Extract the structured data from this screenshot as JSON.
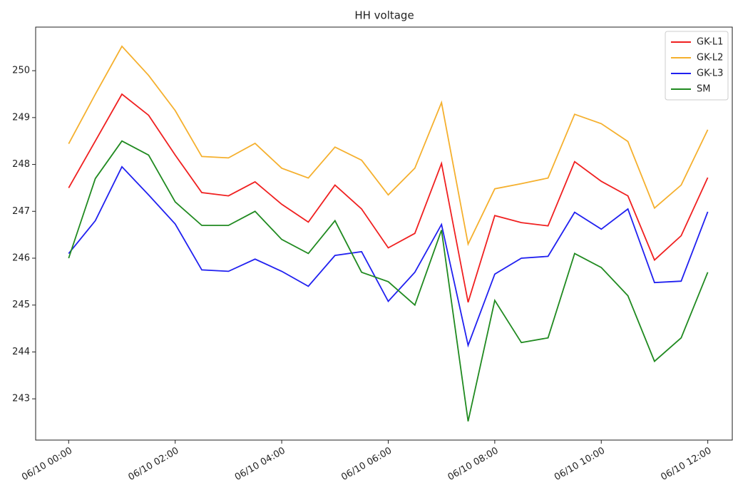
{
  "chart_data": {
    "type": "line",
    "title": "HH voltage",
    "x": [
      0,
      0.5,
      1,
      1.5,
      2,
      2.5,
      3,
      3.5,
      4,
      4.5,
      5,
      5.5,
      6,
      6.5,
      7,
      7.5,
      8,
      8.5,
      9,
      9.5,
      10,
      10.5,
      11,
      11.5,
      12
    ],
    "xlim": [
      -0.62,
      12.46
    ],
    "xticks": [
      {
        "value": 0,
        "label": "06/10 00:00"
      },
      {
        "value": 2,
        "label": "06/10 02:00"
      },
      {
        "value": 4,
        "label": "06/10 04:00"
      },
      {
        "value": 6,
        "label": "06/10 06:00"
      },
      {
        "value": 8,
        "label": "06/10 08:00"
      },
      {
        "value": 10,
        "label": "06/10 10:00"
      },
      {
        "value": 12,
        "label": "06/10 12:00"
      }
    ],
    "ylim": [
      242.12,
      250.93
    ],
    "yticks": [
      243,
      244,
      245,
      246,
      247,
      248,
      249,
      250
    ],
    "legend": "upper right",
    "series": [
      {
        "name": "GK-L1",
        "color": "#f02020",
        "values": [
          247.5,
          248.5,
          249.5,
          249.05,
          248.2,
          247.4,
          247.33,
          247.63,
          247.15,
          246.77,
          247.56,
          247.05,
          246.22,
          246.53,
          248.02,
          245.06,
          246.91,
          246.76,
          246.69,
          248.06,
          247.64,
          247.33,
          245.96,
          246.48,
          247.72
        ]
      },
      {
        "name": "GK-L2",
        "color": "#f5b02e",
        "values": [
          248.44,
          249.5,
          250.52,
          249.9,
          249.15,
          248.17,
          248.14,
          248.45,
          247.92,
          247.71,
          248.37,
          248.09,
          247.35,
          247.92,
          249.32,
          246.3,
          247.48,
          247.59,
          247.71,
          249.07,
          248.87,
          248.49,
          247.07,
          247.56,
          248.74
        ]
      },
      {
        "name": "GK-L3",
        "color": "#2020f0",
        "values": [
          246.1,
          246.8,
          247.95,
          247.35,
          246.73,
          245.75,
          245.72,
          245.98,
          245.72,
          245.4,
          246.06,
          246.14,
          245.08,
          245.7,
          246.72,
          244.14,
          245.66,
          246.0,
          246.04,
          246.98,
          246.62,
          247.05,
          245.48,
          245.51,
          246.99
        ]
      },
      {
        "name": "SM",
        "color": "#208a20",
        "values": [
          246.0,
          247.7,
          248.5,
          248.2,
          247.2,
          246.7,
          246.7,
          247.0,
          246.4,
          246.1,
          246.8,
          245.7,
          245.5,
          245.0,
          246.6,
          242.52,
          245.1,
          244.2,
          244.3,
          246.1,
          245.8,
          245.2,
          243.8,
          244.3,
          245.7
        ]
      }
    ]
  }
}
